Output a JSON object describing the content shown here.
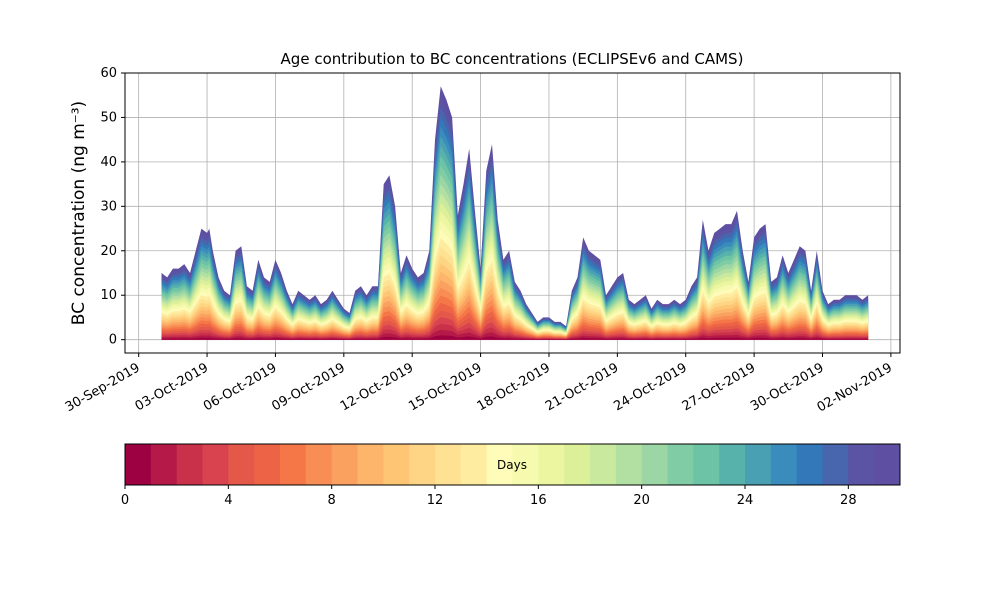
{
  "chart_data": {
    "type": "area",
    "title": "Age contribution to BC concentrations (ECLIPSEv6 and CAMS)",
    "ylabel": "BC concentration (ng m⁻³)",
    "xlabel": "",
    "ylim": [
      -3,
      60
    ],
    "yticks": [
      0,
      10,
      20,
      30,
      40,
      50,
      60
    ],
    "xticks": [
      "30-Sep-2019",
      "03-Oct-2019",
      "06-Oct-2019",
      "09-Oct-2019",
      "12-Oct-2019",
      "15-Oct-2019",
      "18-Oct-2019",
      "21-Oct-2019",
      "24-Oct-2019",
      "27-Oct-2019",
      "30-Oct-2019",
      "02-Nov-2019"
    ],
    "xtick_days": [
      0,
      3,
      6,
      9,
      12,
      15,
      18,
      21,
      24,
      27,
      30,
      33
    ],
    "xlim": [
      -0.6,
      33.4
    ],
    "grid": true,
    "stacked_by": "age in days (0-30)",
    "total": {
      "x": [
        1.0,
        1.25,
        1.5,
        1.75,
        2.0,
        2.25,
        2.5,
        2.75,
        3.0,
        3.1,
        3.25,
        3.5,
        3.75,
        4.0,
        4.25,
        4.5,
        4.75,
        5.0,
        5.25,
        5.5,
        5.75,
        6.0,
        6.25,
        6.5,
        6.75,
        7.0,
        7.25,
        7.5,
        7.75,
        8.0,
        8.25,
        8.5,
        8.75,
        9.0,
        9.25,
        9.5,
        9.75,
        10.0,
        10.25,
        10.5,
        10.75,
        11.0,
        11.25,
        11.5,
        11.75,
        12.0,
        12.25,
        12.5,
        12.75,
        13.0,
        13.25,
        13.5,
        13.75,
        14.0,
        14.25,
        14.5,
        14.75,
        15.0,
        15.25,
        15.5,
        15.75,
        16.0,
        16.25,
        16.5,
        16.75,
        17.0,
        17.25,
        17.5,
        17.75,
        18.0,
        18.25,
        18.5,
        18.75,
        19.0,
        19.25,
        19.5,
        19.75,
        20.0,
        20.25,
        20.5,
        20.75,
        21.0,
        21.25,
        21.5,
        21.75,
        22.0,
        22.25,
        22.5,
        22.75,
        23.0,
        23.25,
        23.5,
        23.75,
        24.0,
        24.25,
        24.5,
        24.75,
        25.0,
        25.25,
        25.5,
        25.75,
        26.0,
        26.25,
        26.5,
        26.75,
        27.0,
        27.25,
        27.5,
        27.75,
        28.0,
        28.25,
        28.5,
        28.75,
        29.0,
        29.25,
        29.5,
        29.75,
        30.0,
        30.25,
        30.5,
        30.75,
        31.0,
        31.25,
        31.5,
        31.75,
        32.0
      ],
      "y": [
        15,
        14,
        16,
        16,
        17,
        15,
        20,
        25,
        24,
        25,
        20,
        14,
        11,
        10,
        20,
        21,
        12,
        11,
        18,
        14,
        13,
        18,
        15,
        11,
        8,
        11,
        10,
        9,
        10,
        8,
        9,
        11,
        9,
        7,
        6,
        11,
        12,
        10,
        12,
        12,
        35,
        37,
        30,
        15,
        19,
        16,
        14,
        15,
        20,
        45,
        57,
        54,
        50,
        28,
        35,
        43,
        29,
        16,
        38,
        44,
        27,
        18,
        20,
        13,
        11,
        8,
        6,
        4,
        5,
        5,
        4,
        4,
        3,
        11,
        14,
        23,
        20,
        19,
        18,
        10,
        12,
        14,
        15,
        9,
        8,
        9,
        10,
        7,
        9,
        8,
        8,
        9,
        8,
        9,
        12,
        14,
        27,
        20,
        24,
        25,
        26,
        26,
        29,
        20,
        13,
        23,
        25,
        26,
        13,
        14,
        19,
        15,
        18,
        21,
        20,
        11,
        20,
        11,
        8,
        9,
        9,
        10,
        10,
        10,
        9,
        10
      ]
    },
    "colorbar": {
      "label": "Days",
      "range": [
        0,
        30
      ],
      "ticks": [
        0,
        4,
        8,
        12,
        16,
        20,
        24,
        28
      ],
      "colors": [
        "#9e0142",
        "#b41947",
        "#c9314b",
        "#d9434f",
        "#e35849",
        "#ec6445",
        "#f57748",
        "#f88e53",
        "#fba160",
        "#fdb56c",
        "#fdc574",
        "#fdd584",
        "#fee193",
        "#feeda1",
        "#fffbb8",
        "#f5faaf",
        "#ecf6a1",
        "#dcf099",
        "#c9e99e",
        "#b2e0a2",
        "#9bd6a4",
        "#80cca5",
        "#6cc3a5",
        "#57b2ab",
        "#4aa0b3",
        "#398cbc",
        "#3378b8",
        "#4866ad",
        "#5b53a4",
        "#5e4fa2"
      ]
    }
  }
}
